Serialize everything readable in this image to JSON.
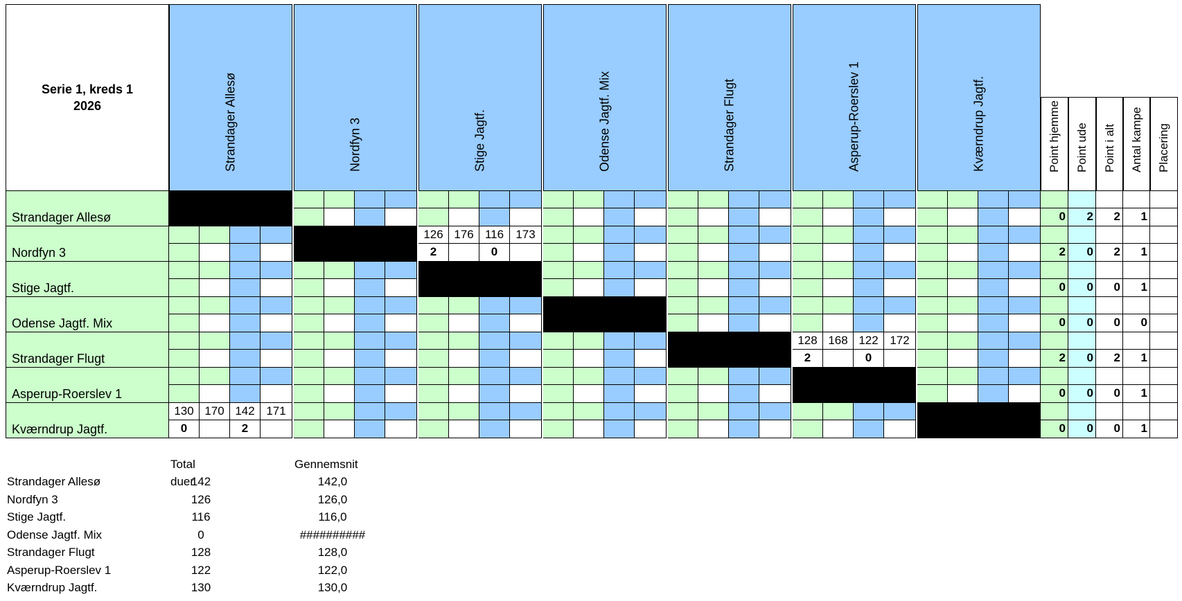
{
  "title": {
    "line1": "Serie 1, kreds 1",
    "line2": "2026"
  },
  "teams": [
    "Strandager Allesø",
    "Nordfyn 3",
    "Stige Jagtf.",
    "Odense Jagtf. Mix",
    "Strandager Flugt",
    "Asperup-Roerslev 1",
    "Kværndrup Jagtf."
  ],
  "stat_headers": [
    "Point hjemme",
    "Point ude",
    "Point i alt",
    "Antal kampe",
    "Placering"
  ],
  "results": [
    {
      "row": 1,
      "col": 2,
      "top": [
        "126",
        "176",
        "116",
        "173"
      ],
      "bottom": [
        "2",
        "",
        "0",
        ""
      ]
    },
    {
      "row": 4,
      "col": 5,
      "top": [
        "128",
        "168",
        "122",
        "172"
      ],
      "bottom": [
        "2",
        "",
        "0",
        ""
      ]
    },
    {
      "row": 6,
      "col": 0,
      "top": [
        "130",
        "170",
        "142",
        "171"
      ],
      "bottom": [
        "0",
        "",
        "2",
        ""
      ]
    }
  ],
  "stats": [
    [
      "0",
      "2",
      "2",
      "1",
      ""
    ],
    [
      "2",
      "0",
      "2",
      "1",
      ""
    ],
    [
      "0",
      "0",
      "0",
      "1",
      ""
    ],
    [
      "0",
      "0",
      "0",
      "0",
      ""
    ],
    [
      "2",
      "0",
      "2",
      "1",
      ""
    ],
    [
      "0",
      "0",
      "0",
      "1",
      ""
    ],
    [
      "0",
      "0",
      "0",
      "1",
      ""
    ]
  ],
  "summary": {
    "headers": {
      "total": "Total duer",
      "avg": "Gennemsnit"
    },
    "rows": [
      {
        "team": "Strandager Allesø",
        "total": "142",
        "avg": "142,0"
      },
      {
        "team": "Nordfyn 3",
        "total": "126",
        "avg": "126,0"
      },
      {
        "team": "Stige Jagtf.",
        "total": "116",
        "avg": "116,0"
      },
      {
        "team": "Odense Jagtf. Mix",
        "total": "0",
        "avg": "##########"
      },
      {
        "team": "Strandager Flugt",
        "total": "128",
        "avg": "128,0"
      },
      {
        "team": "Asperup-Roerslev 1",
        "total": "122",
        "avg": "122,0"
      },
      {
        "team": "Kværndrup Jagtf.",
        "total": "130",
        "avg": "130,0"
      }
    ]
  }
}
